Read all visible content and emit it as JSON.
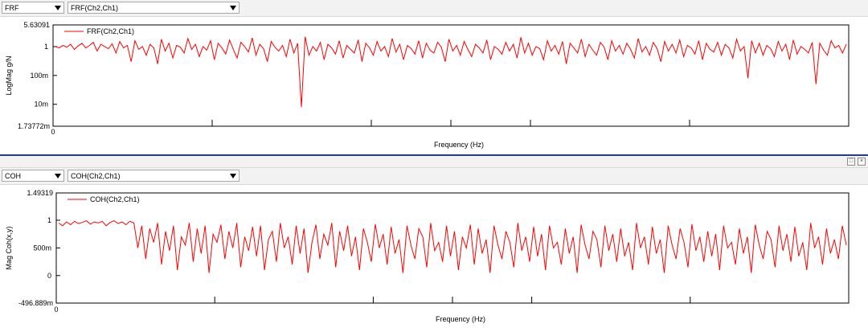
{
  "panels": [
    {
      "function_select": "FRF",
      "channel_select": "FRF(Ch2,Ch1)",
      "ylabel": "LogMag g/N",
      "xlabel": "Frequency (Hz)",
      "ymax_label": "5.63091",
      "ymin_label": "1.73772m",
      "yticks": [
        "1",
        "100m",
        "10m"
      ],
      "x_start_label": "0",
      "legend": "FRF(Ch2,Ch1)"
    },
    {
      "function_select": "COH",
      "channel_select": "COH(Ch2,Ch1)",
      "ylabel": "Mag Coh(x,y)",
      "xlabel": "Frequency (Hz)",
      "ymax_label": "1.49319",
      "ymin_label": "-496.889m",
      "yticks": [
        "1",
        "500m",
        "0"
      ],
      "x_start_label": "0",
      "legend": "COH(Ch2,Ch1)"
    }
  ],
  "window_controls": {
    "restore": "□",
    "close": "×"
  },
  "chart_data": [
    {
      "type": "line",
      "scale": "log",
      "ylim": [
        0.00173772,
        5.63091
      ],
      "yticks": [
        1,
        0.1,
        0.01
      ],
      "series": [
        {
          "name": "FRF(Ch2,Ch1)",
          "color": "#ff0000",
          "values": [
            1,
            0.9,
            1.1,
            0.95,
            1.2,
            0.8,
            1.05,
            1.3,
            0.9,
            1.1,
            1.4,
            0.7,
            1.2,
            1.0,
            0.85,
            1.25,
            0.6,
            1.5,
            0.9,
            1.1,
            0.3,
            1.6,
            0.8,
            1.0,
            0.5,
            1.2,
            0.9,
            0.25,
            1.8,
            0.7,
            1.3,
            0.4,
            1.1,
            0.95,
            0.6,
            1.9,
            0.8,
            1.2,
            0.45,
            1.0,
            0.75,
            1.6,
            0.35,
            1.3,
            0.9,
            0.55,
            1.7,
            0.8,
            0.4,
            1.4,
            1.0,
            0.65,
            2.0,
            0.5,
            1.2,
            0.85,
            0.3,
            1.5,
            0.95,
            0.7,
            1.1,
            0.45,
            1.8,
            0.6,
            1.3,
            0.008,
            2.2,
            0.5,
            1.0,
            0.7,
            1.4,
            0.35,
            1.2,
            0.9,
            0.55,
            1.6,
            0.4,
            1.1,
            0.8,
            0.6,
            1.7,
            0.3,
            1.3,
            0.9,
            0.5,
            1.5,
            0.7,
            1.0,
            0.45,
            1.9,
            0.65,
            1.2,
            0.35,
            1.1,
            0.85,
            0.55,
            1.6,
            0.4,
            1.3,
            0.75,
            0.6,
            1.4,
            0.95,
            0.3,
            1.8,
            0.7,
            1.1,
            0.5,
            1.5,
            0.8,
            0.45,
            1.2,
            0.9,
            0.6,
            1.7,
            0.35,
            1.0,
            0.8,
            0.55,
            1.4,
            0.7,
            1.2,
            0.4,
            2.1,
            0.6,
            1.3,
            0.5,
            1.0,
            0.85,
            0.35,
            1.6,
            0.7,
            1.1,
            0.55,
            1.5,
            0.25,
            1.3,
            0.9,
            0.6,
            1.8,
            0.45,
            1.2,
            0.75,
            0.5,
            1.4,
            0.95,
            0.35,
            1.6,
            0.7,
            1.1,
            0.55,
            1.3,
            0.8,
            0.4,
            1.9,
            0.65,
            1.0,
            0.5,
            1.4,
            0.85,
            0.3,
            1.5,
            0.7,
            1.2,
            0.6,
            1.7,
            0.45,
            1.1,
            0.9,
            0.55,
            1.6,
            0.35,
            1.3,
            0.8,
            0.65,
            1.4,
            0.5,
            1.2,
            0.9,
            0.4,
            1.8,
            0.7,
            1.0,
            0.08,
            1.6,
            0.6,
            1.3,
            0.5,
            1.1,
            0.85,
            0.45,
            1.5,
            0.7,
            1.2,
            0.35,
            1.7,
            0.55,
            1.0,
            0.8,
            0.6,
            1.4,
            0.05,
            1.3,
            0.75,
            0.5,
            1.6,
            0.9,
            1.1,
            0.6,
            1.2
          ]
        }
      ]
    },
    {
      "type": "line",
      "ylim": [
        -0.496889,
        1.49319
      ],
      "yticks": [
        1,
        0.5,
        0
      ],
      "series": [
        {
          "name": "COH(Ch2,Ch1)",
          "color": "#ff0000",
          "values": [
            0.95,
            0.9,
            0.97,
            0.92,
            0.98,
            0.94,
            0.96,
            0.99,
            0.93,
            0.97,
            0.95,
            0.98,
            0.9,
            0.96,
            0.99,
            0.94,
            0.97,
            0.92,
            0.98,
            0.95,
            0.5,
            0.9,
            0.3,
            0.85,
            0.6,
            0.95,
            0.2,
            0.8,
            0.45,
            0.9,
            0.1,
            0.7,
            0.55,
            0.95,
            0.25,
            0.85,
            0.4,
            0.9,
            0.05,
            0.75,
            0.6,
            0.92,
            0.3,
            0.8,
            0.5,
            0.95,
            0.15,
            0.7,
            0.45,
            0.88,
            0.35,
            0.9,
            0.1,
            0.65,
            0.8,
            0.25,
            0.95,
            0.5,
            0.7,
            0.2,
            0.9,
            0.4,
            0.85,
            0.05,
            0.6,
            0.92,
            0.3,
            0.75,
            0.55,
            0.95,
            0.15,
            0.8,
            0.45,
            0.9,
            0.35,
            0.7,
            0.1,
            0.85,
            0.6,
            0.25,
            0.93,
            0.5,
            0.75,
            0.2,
            0.88,
            0.4,
            0.65,
            0.05,
            0.9,
            0.55,
            0.3,
            0.85,
            0.7,
            0.15,
            0.95,
            0.45,
            0.6,
            0.25,
            0.9,
            0.35,
            0.8,
            0.1,
            0.7,
            0.5,
            0.92,
            0.2,
            0.85,
            0.4,
            0.65,
            0.05,
            0.9,
            0.55,
            0.3,
            0.8,
            0.6,
            0.15,
            0.95,
            0.45,
            0.7,
            0.25,
            0.88,
            0.35,
            0.75,
            0.1,
            0.9,
            0.5,
            0.6,
            0.2,
            0.85,
            0.4,
            0.7,
            0.05,
            0.92,
            0.55,
            0.3,
            0.8,
            0.65,
            0.15,
            0.9,
            0.45,
            0.75,
            0.25,
            0.85,
            0.35,
            0.6,
            0.1,
            0.95,
            0.5,
            0.7,
            0.2,
            0.88,
            0.4,
            0.65,
            0.05,
            0.9,
            0.55,
            0.3,
            0.85,
            0.6,
            0.15,
            0.93,
            0.45,
            0.7,
            0.25,
            0.8,
            0.35,
            0.75,
            0.1,
            0.9,
            0.5,
            0.6,
            0.2,
            0.85,
            0.4,
            0.7,
            0.05,
            0.92,
            0.55,
            0.3,
            0.8,
            0.65,
            0.15,
            0.9,
            0.45,
            0.75,
            0.25,
            0.88,
            0.35,
            0.6,
            0.1,
            0.95,
            0.5,
            0.7,
            0.2,
            0.85,
            0.4,
            0.65,
            0.3,
            0.9,
            0.55
          ]
        }
      ]
    }
  ]
}
